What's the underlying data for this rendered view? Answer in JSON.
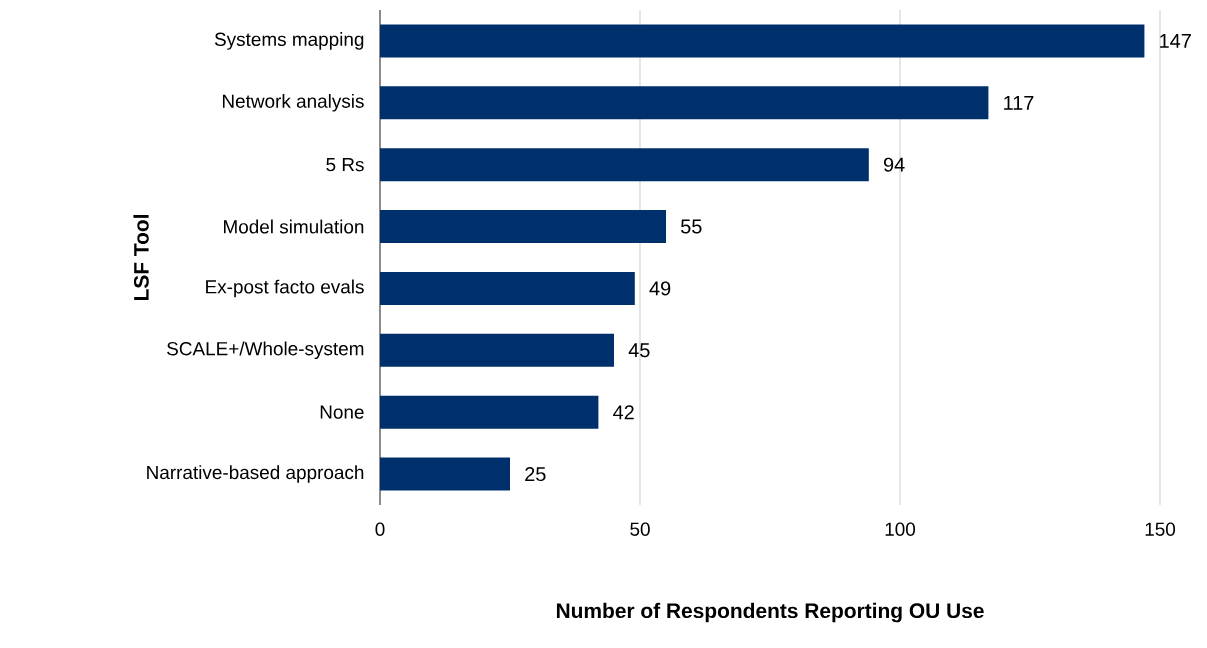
{
  "chart_data": {
    "type": "bar",
    "orientation": "horizontal",
    "categories": [
      "Systems mapping",
      "Network analysis",
      "5 Rs",
      "Model simulation",
      "Ex-post facto evals",
      "SCALE+/Whole-system",
      "None",
      "Narrative-based approach"
    ],
    "values": [
      147,
      117,
      94,
      55,
      49,
      45,
      42,
      25
    ],
    "color": "#00306b",
    "xlabel": "Number of Respondents Reporting OU Use",
    "ylabel": "LSF Tool",
    "xlim": [
      0,
      150
    ],
    "xticks": [
      0,
      50,
      100,
      150
    ],
    "grid": "x",
    "data_labels": true
  }
}
